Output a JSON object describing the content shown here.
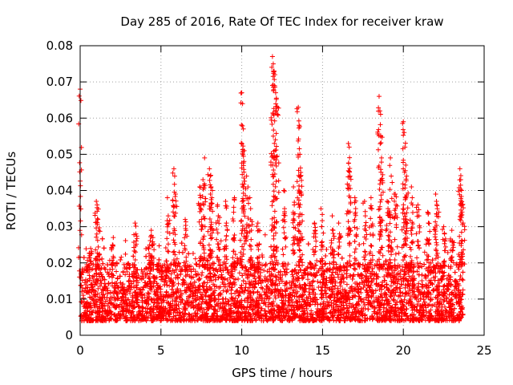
{
  "chart_data": {
    "type": "scatter",
    "title": "Day 285 of 2016, Rate Of TEC Index for receiver kraw",
    "xlabel": "GPS time / hours",
    "ylabel": "ROTI / TECUs",
    "xlim": [
      0,
      25
    ],
    "ylim": [
      0,
      0.08
    ],
    "xticks": [
      0,
      5,
      10,
      15,
      20,
      25
    ],
    "xtick_labels": [
      "0",
      "5",
      "10",
      "15",
      "20",
      "25"
    ],
    "yticks": [
      0,
      0.01,
      0.02,
      0.03,
      0.04,
      0.05,
      0.06,
      0.07,
      0.08
    ],
    "ytick_labels": [
      "0",
      "0.01",
      "0.02",
      "0.03",
      "0.04",
      "0.05",
      "0.06",
      "0.07",
      "0.08"
    ],
    "grid": true,
    "marker": "+",
    "marker_color": "#ff0000",
    "series": [
      {
        "name": "ROTI",
        "description": "Dense band of points roughly 0.003 to 0.025 TECU/min across 0 to 23.7 h with spikes",
        "x": [
          0.0,
          0.05,
          0.6,
          0.65,
          1.0,
          1.05,
          1.1,
          1.15,
          2.0,
          2.05,
          3.4,
          3.45,
          4.3,
          4.35,
          4.4,
          4.5,
          5.4,
          5.45,
          5.8,
          5.85,
          5.9,
          6.5,
          6.55,
          7.4,
          7.45,
          7.6,
          7.65,
          7.7,
          8.0,
          8.05,
          8.1,
          8.15,
          8.5,
          8.55,
          9.0,
          9.05,
          9.5,
          9.55,
          10.0,
          10.05,
          10.1,
          10.15,
          10.3,
          10.5,
          10.55,
          11.0,
          11.05,
          11.9,
          11.95,
          12.0,
          12.05,
          12.1,
          12.2,
          12.6,
          12.65,
          13.2,
          13.25,
          13.5,
          13.55,
          13.6,
          13.65,
          13.7,
          14.5,
          14.55,
          14.9,
          14.95,
          15.6,
          15.65,
          16.0,
          16.05,
          16.6,
          16.65,
          16.7,
          17.0,
          17.05,
          17.6,
          17.65,
          18.0,
          18.05,
          18.5,
          18.55,
          18.6,
          18.65,
          19.0,
          19.05,
          19.2,
          19.25,
          19.5,
          19.55,
          20.0,
          20.05,
          20.1,
          20.15,
          20.2,
          20.5,
          20.55,
          20.9,
          20.95,
          21.5,
          21.55,
          22.0,
          22.05,
          22.1,
          22.5,
          22.55,
          23.0,
          23.05,
          23.5,
          23.55,
          23.6,
          23.65,
          23.7
        ],
        "y": [
          0.068,
          0.016,
          0.022,
          0.024,
          0.037,
          0.036,
          0.032,
          0.029,
          0.025,
          0.027,
          0.031,
          0.028,
          0.025,
          0.022,
          0.029,
          0.027,
          0.038,
          0.033,
          0.046,
          0.044,
          0.039,
          0.032,
          0.029,
          0.041,
          0.038,
          0.043,
          0.036,
          0.049,
          0.046,
          0.044,
          0.041,
          0.038,
          0.036,
          0.033,
          0.037,
          0.031,
          0.034,
          0.038,
          0.067,
          0.064,
          0.057,
          0.051,
          0.044,
          0.038,
          0.035,
          0.031,
          0.029,
          0.077,
          0.075,
          0.073,
          0.072,
          0.067,
          0.063,
          0.04,
          0.035,
          0.041,
          0.036,
          0.063,
          0.058,
          0.05,
          0.045,
          0.039,
          0.031,
          0.029,
          0.035,
          0.03,
          0.033,
          0.029,
          0.031,
          0.028,
          0.053,
          0.052,
          0.044,
          0.038,
          0.035,
          0.037,
          0.033,
          0.038,
          0.035,
          0.066,
          0.062,
          0.055,
          0.049,
          0.037,
          0.035,
          0.049,
          0.044,
          0.039,
          0.036,
          0.059,
          0.056,
          0.052,
          0.047,
          0.044,
          0.041,
          0.038,
          0.036,
          0.033,
          0.034,
          0.031,
          0.039,
          0.037,
          0.035,
          0.03,
          0.028,
          0.029,
          0.026,
          0.046,
          0.043,
          0.04,
          0.036,
          0.031
        ]
      }
    ],
    "legend": "none"
  }
}
